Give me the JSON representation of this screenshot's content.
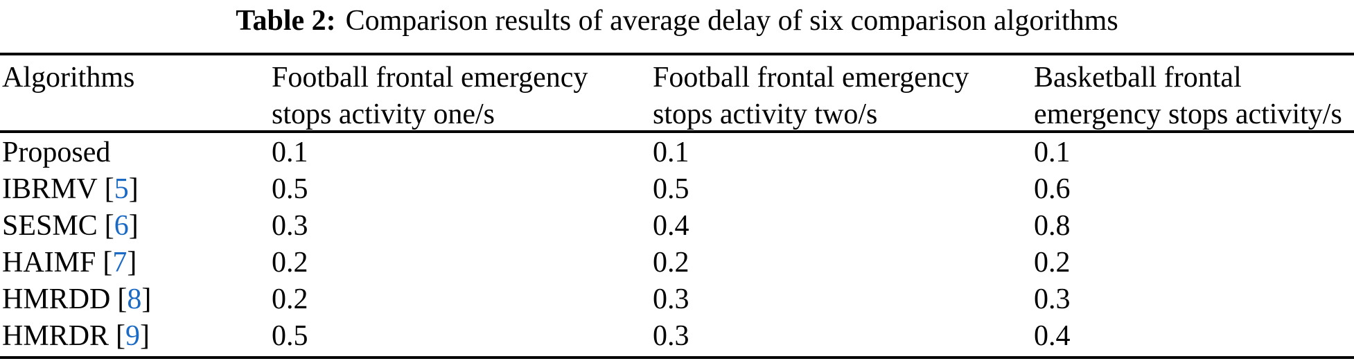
{
  "caption": {
    "label": "Table 2:",
    "text": "Comparison results of average delay of six comparison algorithms"
  },
  "columns": [
    {
      "line1": "Algorithms",
      "line2": ""
    },
    {
      "line1": "Football frontal emergency",
      "line2": "stops activity one/s"
    },
    {
      "line1": "Football frontal emergency",
      "line2": "stops activity two/s"
    },
    {
      "line1": "Basketball frontal",
      "line2": "emergency stops activity/s"
    }
  ],
  "punctuation": {
    "citation_open": "[",
    "citation_close": "]"
  },
  "rows": [
    {
      "name": "Proposed",
      "ref": "",
      "values": [
        "0.1",
        "0.1",
        "0.1"
      ]
    },
    {
      "name": "IBRMV",
      "ref": "5",
      "values": [
        "0.5",
        "0.5",
        "0.6"
      ]
    },
    {
      "name": "SESMC",
      "ref": "6",
      "values": [
        "0.3",
        "0.4",
        "0.8"
      ]
    },
    {
      "name": "HAIMF",
      "ref": "7",
      "values": [
        "0.2",
        "0.2",
        "0.2"
      ]
    },
    {
      "name": "HMRDD",
      "ref": "8",
      "values": [
        "0.2",
        "0.3",
        "0.3"
      ]
    },
    {
      "name": "HMRDR",
      "ref": "9",
      "values": [
        "0.5",
        "0.3",
        "0.4"
      ]
    }
  ],
  "colors": {
    "citation_blue": "#1A6AC5",
    "text": "#000000",
    "rule": "#000000",
    "background": "#ffffff"
  }
}
